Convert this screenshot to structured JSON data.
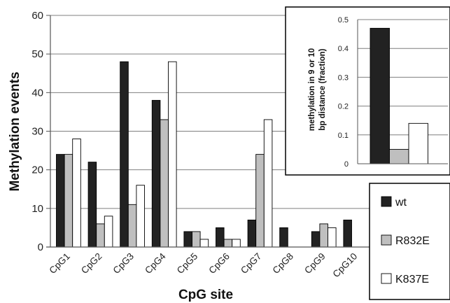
{
  "chart_data": [
    {
      "type": "bar",
      "xlabel": "CpG site",
      "ylabel": "Methylation events",
      "ylim": [
        0,
        60
      ],
      "yticks": [
        0,
        10,
        20,
        30,
        40,
        50,
        60
      ],
      "categories": [
        "CpG1",
        "CpG2",
        "CpG3",
        "CpG4",
        "CpG5",
        "CpG6",
        "CpG7",
        "CpG8",
        "CpG9",
        "CpG10"
      ],
      "series": [
        {
          "name": "wt",
          "color": "#222222",
          "values": [
            24,
            22,
            48,
            38,
            4,
            5,
            7,
            5,
            4,
            7
          ]
        },
        {
          "name": "R832E",
          "color": "#bfbfbf",
          "values": [
            24,
            6,
            11,
            33,
            4,
            2,
            24,
            0,
            6,
            0
          ]
        },
        {
          "name": "K837E",
          "color": "#ffffff",
          "values": [
            28,
            8,
            16,
            48,
            2,
            2,
            33,
            0,
            5,
            0
          ]
        }
      ],
      "legend": "right",
      "grid": "horizontal"
    },
    {
      "type": "bar",
      "ylabel": "methylation in 9 or 10 bp distance (fraction)",
      "ylim": [
        0,
        0.5
      ],
      "yticks": [
        "0",
        "0.1",
        "0.2",
        "0.3",
        "0.4",
        "0.5"
      ],
      "categories": [
        "wt",
        "R832E",
        "K837E"
      ],
      "values": [
        0.47,
        0.05,
        0.14
      ],
      "colors": [
        "#222222",
        "#bfbfbf",
        "#ffffff"
      ],
      "grid": "horizontal",
      "placement": "inset top-right"
    }
  ]
}
